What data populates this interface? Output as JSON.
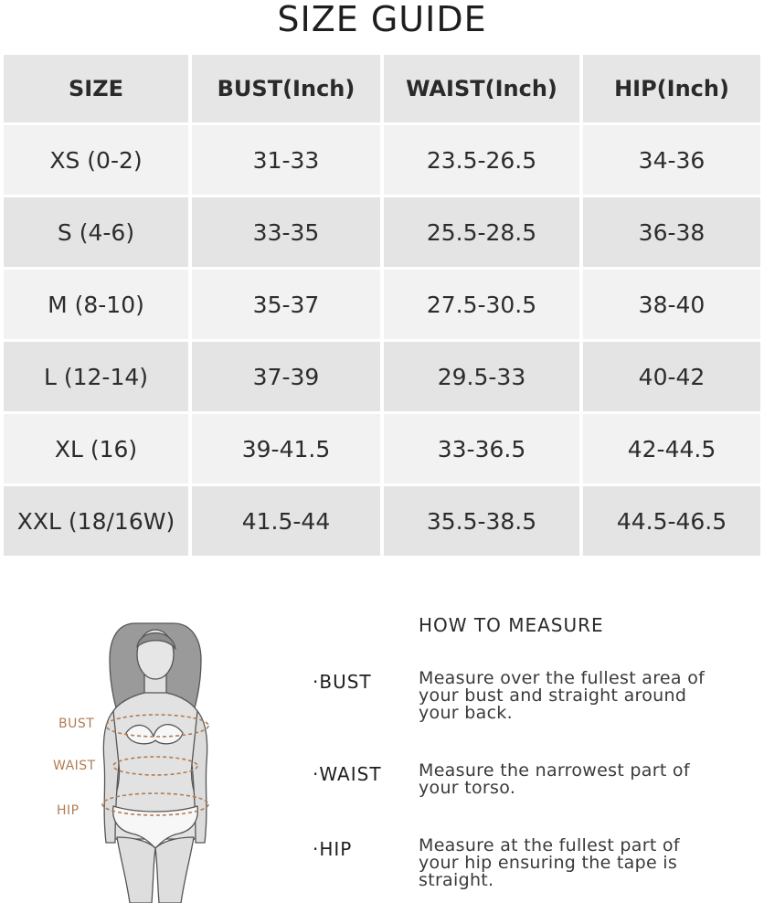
{
  "title": "SIZE GUIDE",
  "table": {
    "headers": [
      "SIZE",
      "BUST(Inch)",
      "WAIST(Inch)",
      "HIP(Inch)"
    ],
    "rows": [
      [
        "XS (0-2)",
        "31-33",
        "23.5-26.5",
        "34-36"
      ],
      [
        "S (4-6)",
        "33-35",
        "25.5-28.5",
        "36-38"
      ],
      [
        "M (8-10)",
        "35-37",
        "27.5-30.5",
        "38-40"
      ],
      [
        "L (12-14)",
        "37-39",
        "29.5-33",
        "40-42"
      ],
      [
        "XL (16)",
        "39-41.5",
        "33-36.5",
        "42-44.5"
      ],
      [
        "XXL (18/16W)",
        "41.5-44",
        "35.5-38.5",
        "44.5-46.5"
      ]
    ]
  },
  "figure": {
    "labels": [
      "BUST",
      "WAIST",
      "HIP"
    ],
    "label_color": "#b07d55"
  },
  "measure": {
    "title": "HOW TO MEASURE",
    "items": [
      {
        "label": "·BUST",
        "desc": "Measure over the fullest area of your bust and straight around your back."
      },
      {
        "label": "·WAIST",
        "desc": "Measure the narrowest part of your torso."
      },
      {
        "label": "·HIP",
        "desc": "Measure at the fullest part of your hip ensuring the tape is straight."
      }
    ]
  }
}
